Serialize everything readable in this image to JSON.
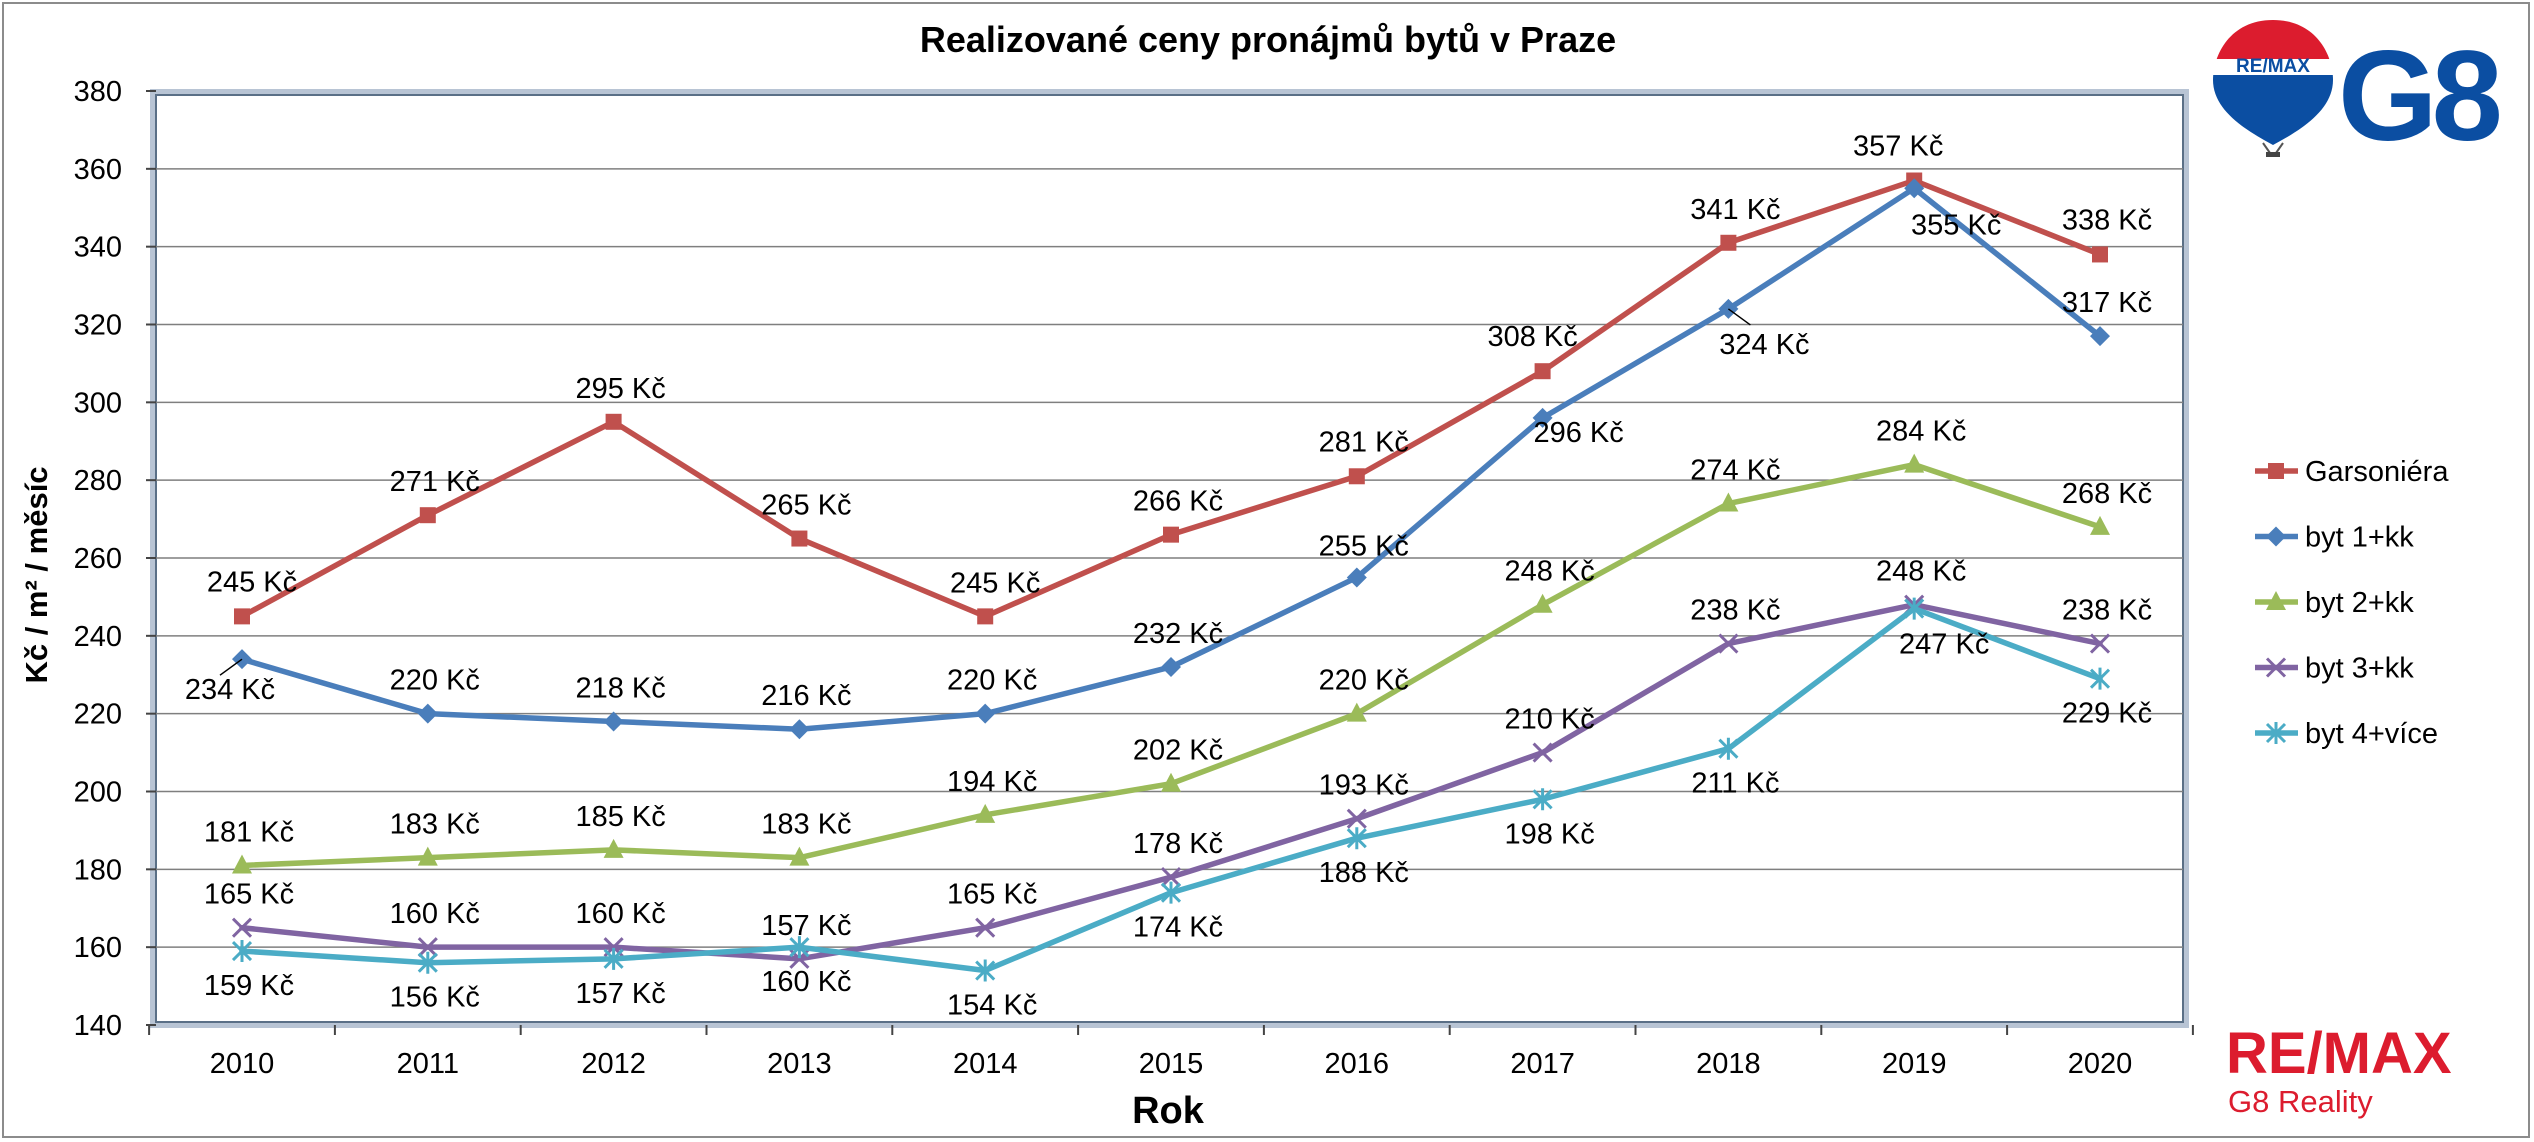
{
  "chart_data": {
    "type": "line",
    "title": "Realizované ceny pronájmů bytů v Praze",
    "xlabel": "Rok",
    "ylabel": "Kč / m² / měsíc",
    "x": [
      "2010",
      "2011",
      "2012",
      "2013",
      "2014",
      "2015",
      "2016",
      "2017",
      "2018",
      "2019",
      "2020"
    ],
    "ylim": [
      140,
      380
    ],
    "yticks": [
      "140",
      "160",
      "180",
      "200",
      "220",
      "240",
      "260",
      "280",
      "300",
      "320",
      "340",
      "360",
      "380"
    ],
    "grid": true,
    "legend_position": "right",
    "value_suffix": " Kč",
    "series": [
      {
        "name": "Garsoniéra",
        "color": "#c0504d",
        "marker": "square",
        "values": [
          245,
          271,
          295,
          265,
          245,
          266,
          281,
          308,
          341,
          357,
          338
        ]
      },
      {
        "name": "byt 1+kk",
        "color": "#4a7ebb",
        "marker": "diamond",
        "values": [
          234,
          220,
          218,
          216,
          220,
          232,
          255,
          296,
          324,
          355,
          317
        ]
      },
      {
        "name": "byt 2+kk",
        "color": "#9bbb59",
        "marker": "triangle",
        "values": [
          181,
          183,
          185,
          183,
          194,
          202,
          220,
          248,
          274,
          284,
          268
        ]
      },
      {
        "name": "byt 3+kk",
        "color": "#8064a2",
        "marker": "x",
        "values": [
          165,
          160,
          160,
          157,
          165,
          178,
          193,
          210,
          238,
          248,
          238
        ]
      },
      {
        "name": "byt 4+více",
        "color": "#4bacc6",
        "marker": "star",
        "values": [
          159,
          156,
          157,
          160,
          154,
          174,
          188,
          198,
          211,
          247,
          229
        ]
      }
    ]
  },
  "branding": {
    "balloon_logo_text": "RE/MAX",
    "office_logo_text": "G8",
    "footer_brand": "RE/MAX",
    "footer_office": "G8 Reality",
    "brand_red": "#dc1c2e",
    "brand_blue": "#0b4ea2"
  }
}
